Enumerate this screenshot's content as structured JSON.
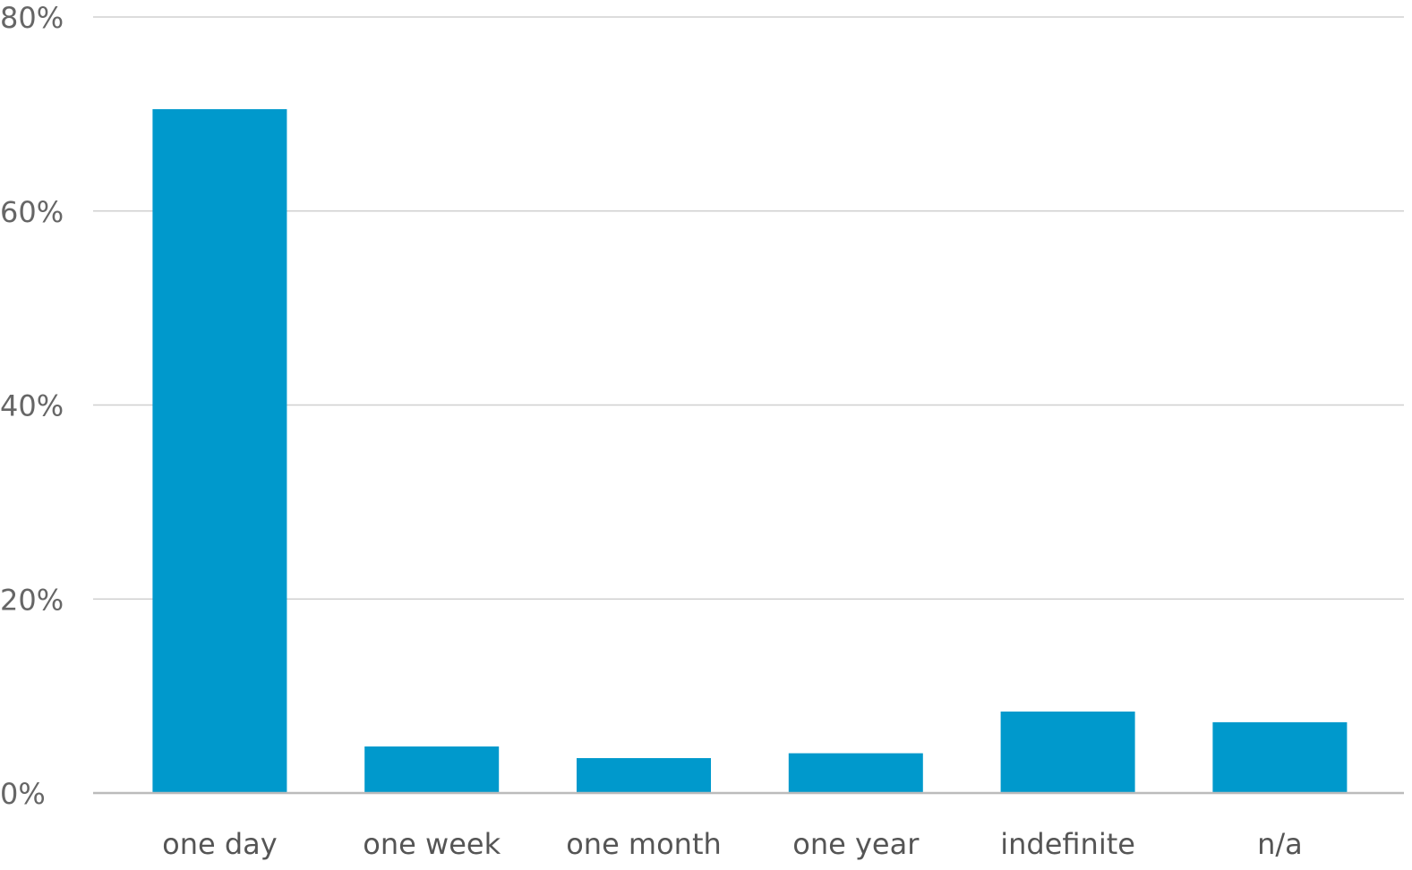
{
  "chart_data": {
    "type": "bar",
    "title": "",
    "xlabel": "",
    "ylabel": "",
    "categories": [
      "one day",
      "one week",
      "one month",
      "one year",
      "indefinite",
      "n/a"
    ],
    "values": [
      70.5,
      4.8,
      3.6,
      4.1,
      8.4,
      7.3
    ],
    "ylim": [
      0,
      80
    ],
    "yticks": [
      0,
      20,
      40,
      60,
      80
    ],
    "ytick_labels": [
      "0%",
      "20%",
      "40%",
      "60%",
      "80%"
    ],
    "grid": true,
    "legend": "none",
    "bar_color": "#0099cc",
    "grid_color": "#d0d0d0",
    "axis_color": "#bbbbbb"
  }
}
